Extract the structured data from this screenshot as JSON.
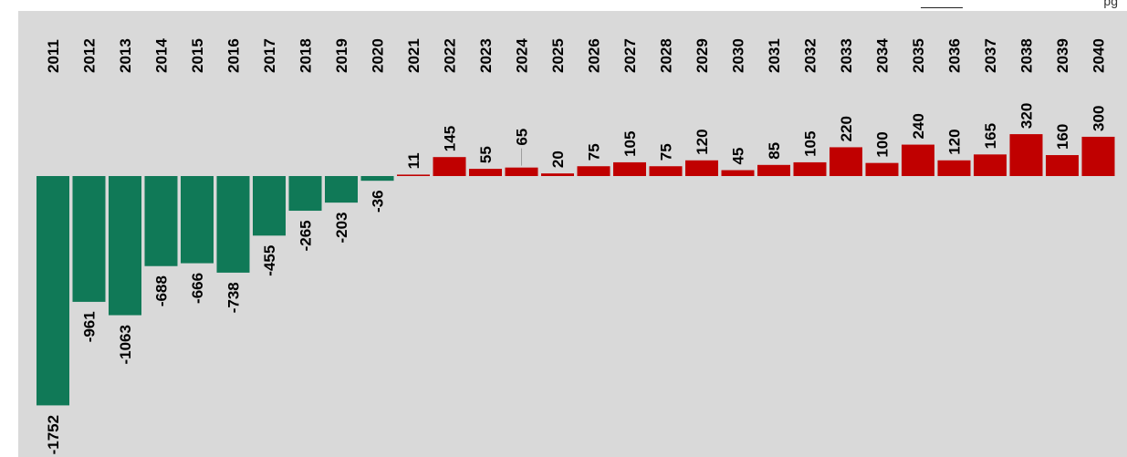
{
  "header": {
    "fragment_text": "pg"
  },
  "colors": {
    "background": "#d9d9d9",
    "negative": "#107957",
    "positive": "#c00000",
    "leader": "#9e9e9e"
  },
  "chart_data": {
    "type": "bar",
    "title": "",
    "xlabel": "",
    "ylabel": "",
    "categories": [
      "2011",
      "2012",
      "2013",
      "2014",
      "2015",
      "2016",
      "2017",
      "2018",
      "2019",
      "2020",
      "2021",
      "2022",
      "2023",
      "2024",
      "2025",
      "2026",
      "2027",
      "2028",
      "2029",
      "2030",
      "2031",
      "2032",
      "2033",
      "2034",
      "2035",
      "2036",
      "2037",
      "2038",
      "2039",
      "2040"
    ],
    "values": [
      -1752,
      -961,
      -1063,
      -688,
      -666,
      -738,
      -455,
      -265,
      -203,
      -36,
      11,
      145,
      55,
      65,
      20,
      75,
      105,
      75,
      120,
      45,
      85,
      105,
      220,
      100,
      240,
      120,
      165,
      320,
      160,
      300
    ],
    "grid": false,
    "legend": "none",
    "data_labels": true,
    "category_labels_position": "top",
    "ylim": [
      -1960,
      1330
    ]
  }
}
